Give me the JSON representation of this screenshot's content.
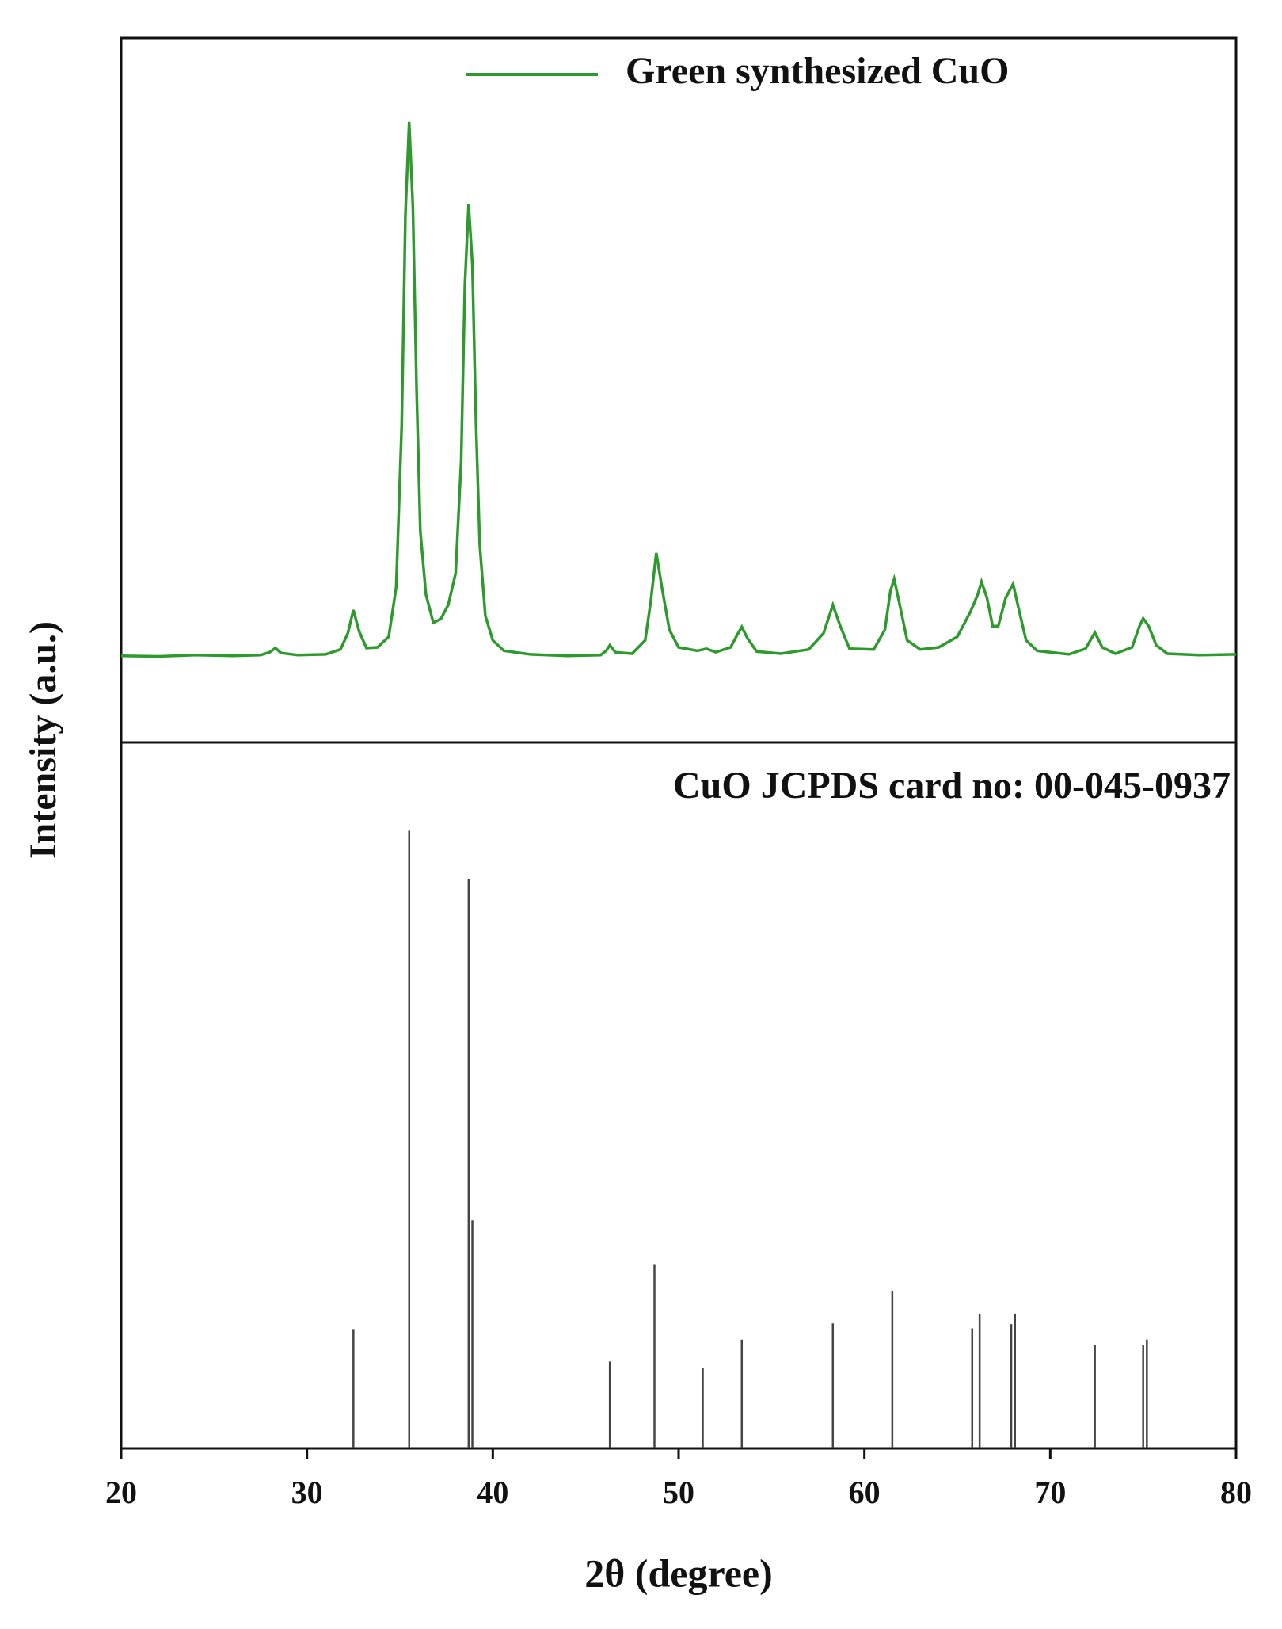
{
  "chart_data": [
    {
      "type": "line",
      "ylabel": "Intensity (a.u.)",
      "xlim": [
        20,
        80
      ],
      "ylim": [
        0,
        100
      ],
      "legend": "upper right",
      "series": [
        {
          "name": "Green synthesized CuO",
          "color": "#2e9a2e",
          "x": [
            20,
            22,
            24,
            26,
            27.5,
            28,
            28.3,
            28.6,
            29.5,
            31,
            31.8,
            32.2,
            32.5,
            32.8,
            33.2,
            33.8,
            34.4,
            34.8,
            35.1,
            35.3,
            35.5,
            35.7,
            35.9,
            36.1,
            36.4,
            36.8,
            37.2,
            37.6,
            38,
            38.3,
            38.5,
            38.7,
            38.9,
            39.1,
            39.3,
            39.6,
            40,
            40.6,
            42,
            44,
            45.8,
            46.1,
            46.3,
            46.6,
            47.5,
            48.2,
            48.5,
            48.8,
            49.1,
            49.5,
            50,
            51,
            51.5,
            52,
            52.8,
            53.2,
            53.4,
            53.7,
            54.2,
            55.5,
            57,
            57.8,
            58.3,
            58.7,
            59.2,
            60.5,
            61.1,
            61.4,
            61.6,
            61.9,
            62.3,
            63,
            64,
            65,
            65.7,
            66.1,
            66.3,
            66.6,
            66.9,
            67.2,
            67.6,
            68,
            68.3,
            68.7,
            69.3,
            71,
            71.9,
            72.4,
            72.8,
            73.5,
            74.4,
            74.8,
            75,
            75.3,
            75.7,
            76.3,
            78,
            80
          ],
          "values": [
            12.3,
            12.2,
            12.4,
            12.3,
            12.4,
            12.8,
            13.4,
            12.7,
            12.4,
            12.5,
            13.2,
            15.5,
            18.8,
            15.8,
            13.4,
            13.5,
            15,
            22,
            45,
            75,
            88.1,
            76,
            50,
            30,
            21,
            17,
            17.5,
            19.5,
            24,
            40,
            65,
            76.4,
            68,
            45,
            28,
            18,
            14.5,
            13,
            12.5,
            12.3,
            12.4,
            13,
            13.8,
            12.8,
            12.6,
            14.5,
            20,
            26.9,
            22,
            16,
            13.5,
            13,
            13.3,
            12.8,
            13.5,
            15.5,
            16.4,
            14.8,
            12.9,
            12.6,
            13.2,
            15.5,
            19.5,
            16.5,
            13.3,
            13.2,
            16,
            21.5,
            23.2,
            19.5,
            14.5,
            13.2,
            13.5,
            15,
            18.5,
            21,
            22.8,
            20.5,
            16.5,
            16.5,
            20.5,
            22.5,
            19,
            14.5,
            13,
            12.5,
            13.3,
            15.6,
            13.5,
            12.6,
            13.5,
            16.5,
            17.6,
            16.5,
            13.8,
            12.6,
            12.4,
            12.5
          ]
        }
      ]
    },
    {
      "type": "stem",
      "annotation": "CuO JCPDS card no: 00-045-0937",
      "xlabel": "2θ (degree)",
      "xlim": [
        20,
        80
      ],
      "xticks": [
        20,
        30,
        40,
        50,
        60,
        70,
        80
      ],
      "ylim": [
        0,
        100
      ],
      "color": "#444444",
      "x": [
        32.5,
        35.5,
        38.7,
        38.9,
        46.3,
        48.7,
        51.3,
        53.4,
        58.3,
        61.5,
        65.8,
        66.2,
        67.9,
        68.1,
        72.4,
        75.0,
        75.2
      ],
      "values": [
        16.9,
        87.5,
        80.6,
        32.3,
        12.3,
        26.1,
        11.4,
        15.4,
        17.7,
        22.3,
        17,
        19.1,
        17.6,
        19.1,
        14.7,
        14.7,
        15.4
      ]
    }
  ]
}
